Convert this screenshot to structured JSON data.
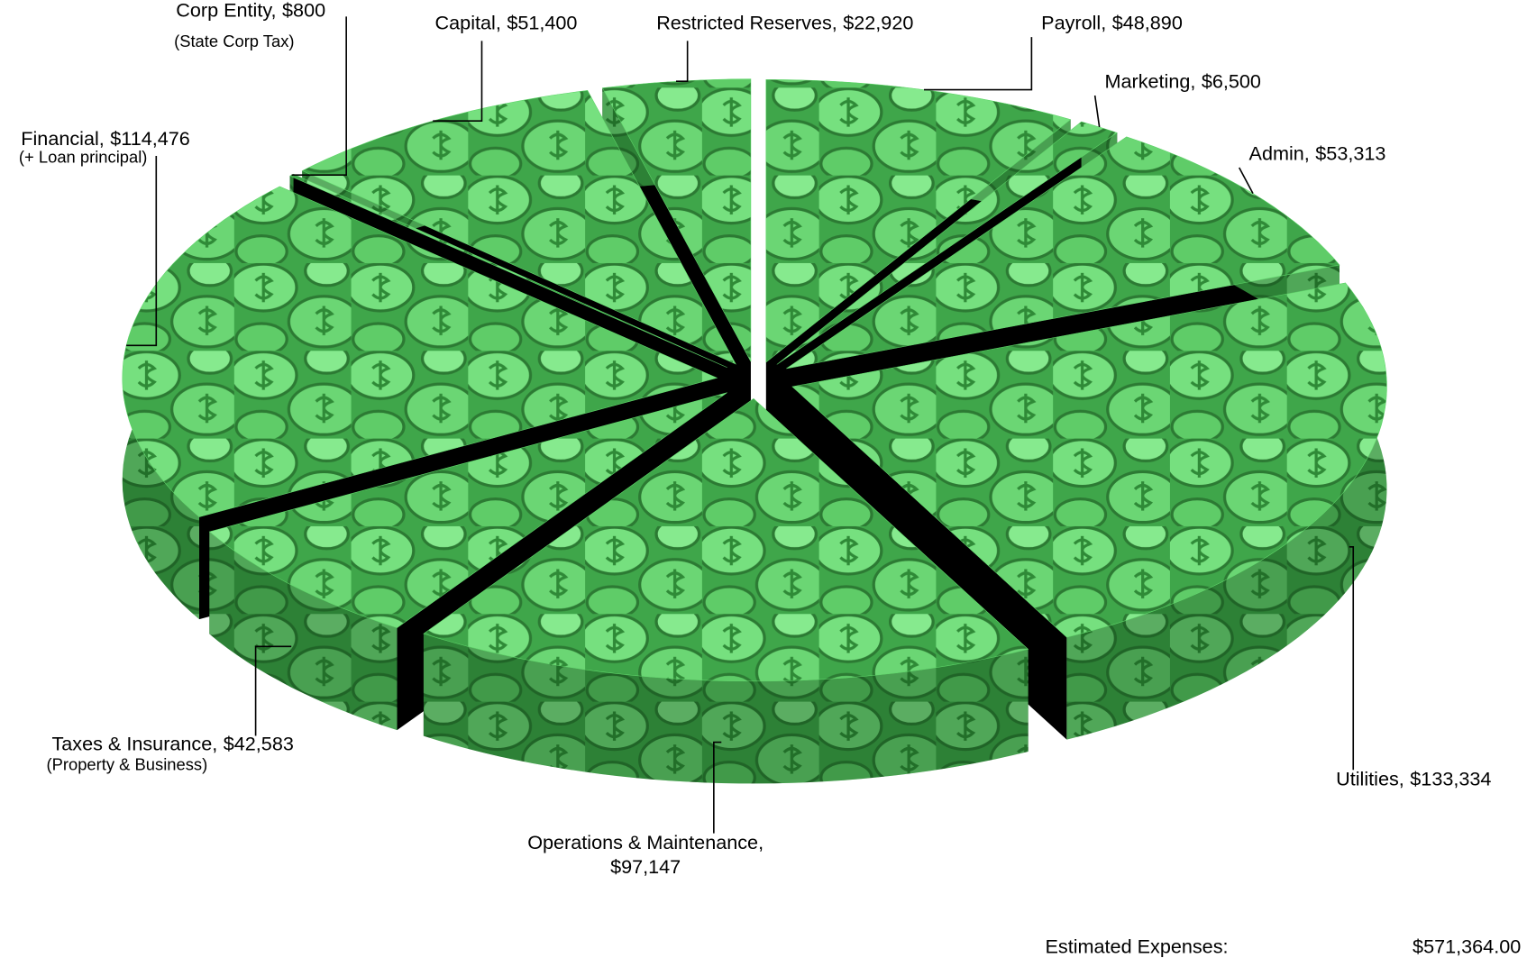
{
  "chart_data": {
    "type": "pie3d",
    "categories": [
      "Payroll,",
      "Marketing,",
      "Admin,",
      "Utilities,",
      "Operations & Maintenance,",
      "Taxes & Insurance,",
      "Financial,",
      "Corp Entity,",
      "Capital,",
      "Restricted Reserves,"
    ],
    "values": [
      48890,
      6500,
      53313,
      133334,
      97147,
      42583,
      114476,
      800,
      51400,
      22920
    ],
    "value_labels": [
      "$48,890",
      "$6,500",
      "$53,313",
      "$133,334",
      "$97,147",
      "$42,583",
      "$114,476",
      "$800",
      "$51,400",
      "$22,920"
    ],
    "notes": [
      null,
      null,
      null,
      null,
      null,
      "(Property & Business)",
      "(+ Loan principal)",
      "(State Corp Tax)",
      null,
      null
    ],
    "color": "#5fd66a",
    "total": {
      "label": "Estimated Expenses:",
      "value": 571364,
      "value_label": "$571,364.00"
    }
  }
}
